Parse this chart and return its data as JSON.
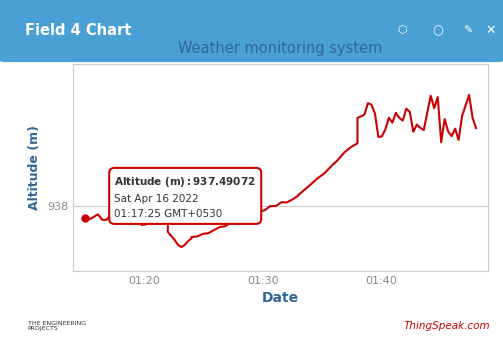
{
  "title": "Weather monitoring system",
  "xlabel": "Date",
  "ylabel": "Altitude (m)",
  "header_title": "Field 4 Chart",
  "header_bg": "#4a9fd4",
  "line_color": "#cc0000",
  "ytick_labels": [
    "938"
  ],
  "xtick_labels": [
    "01:20",
    "01:30",
    "01:40"
  ],
  "annotation_line1": "Altitude (m):937.49072",
  "annotation_line2": "Sat Apr 16 2022",
  "annotation_line3": "01:17:25 GMT+0530",
  "thingspeak_text": "ThingSpeak.com",
  "thingspeak_color": "#cc0000",
  "title_color": "#336699",
  "axis_label_color": "#336699",
  "tick_color": "#888888",
  "grid_color": "#cccccc",
  "annotation_box_color": "#cc0000",
  "annotation_bg": "#ffffff"
}
